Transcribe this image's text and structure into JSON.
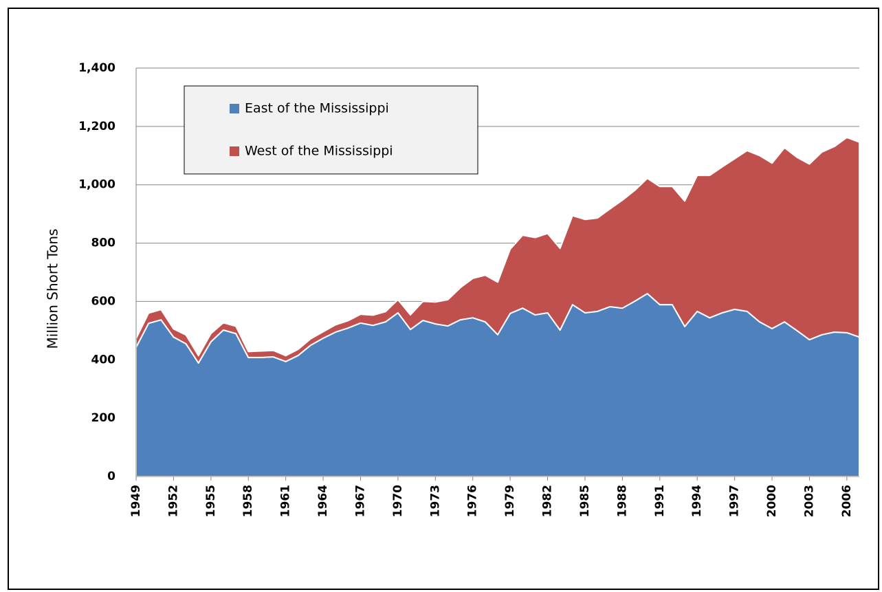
{
  "chart_data": {
    "type": "stacked-area",
    "y_label": "Million Short Tons",
    "x": [
      1949,
      1950,
      1951,
      1952,
      1953,
      1954,
      1955,
      1956,
      1957,
      1958,
      1959,
      1960,
      1961,
      1962,
      1963,
      1964,
      1965,
      1966,
      1967,
      1968,
      1969,
      1970,
      1971,
      1972,
      1973,
      1974,
      1975,
      1976,
      1977,
      1978,
      1979,
      1980,
      1981,
      1982,
      1983,
      1984,
      1985,
      1986,
      1987,
      1988,
      1989,
      1990,
      1991,
      1992,
      1993,
      1994,
      1995,
      1996,
      1997,
      1998,
      1999,
      2000,
      2001,
      2002,
      2003,
      2004,
      2005,
      2006,
      2007
    ],
    "xlim": [
      1949,
      2007
    ],
    "xticks": [
      1949,
      1952,
      1955,
      1958,
      1961,
      1964,
      1967,
      1970,
      1973,
      1976,
      1979,
      1982,
      1985,
      1988,
      1991,
      1994,
      1997,
      2000,
      2003,
      2006
    ],
    "ylim": [
      0,
      1400
    ],
    "yticks": [
      0,
      200,
      400,
      600,
      800,
      {
        "value": 1000,
        "label": "1,000"
      },
      {
        "value": 1200,
        "label": "1,200"
      },
      {
        "value": 1400,
        "label": "1,400"
      }
    ],
    "grid": true,
    "series": [
      {
        "name": "East of the Mississippi",
        "color": "#4f81bd",
        "values": [
          443,
          525,
          537,
          478,
          455,
          389,
          462,
          502,
          490,
          408,
          408,
          410,
          394,
          415,
          450,
          474,
          495,
          509,
          526,
          518,
          530,
          561,
          504,
          535,
          523,
          516,
          537,
          544,
          530,
          486,
          559,
          577,
          554,
          561,
          502,
          589,
          561,
          566,
          582,
          577,
          601,
          627,
          589,
          589,
          514,
          566,
          544,
          561,
          573,
          566,
          530,
          507,
          530,
          500,
          469,
          486,
          495,
          493,
          478
        ]
      },
      {
        "name": "West of the Mississippi",
        "color": "#c0504d",
        "values": [
          30,
          35,
          35,
          28,
          30,
          25,
          28,
          25,
          25,
          20,
          22,
          22,
          20,
          21,
          22,
          22,
          25,
          25,
          30,
          35,
          35,
          45,
          50,
          65,
          75,
          90,
          110,
          135,
          160,
          180,
          220,
          250,
          265,
          272,
          280,
          305,
          320,
          320,
          335,
          370,
          380,
          395,
          405,
          405,
          430,
          466,
          488,
          500,
          516,
          551,
          570,
          567,
          597,
          594,
          602,
          626,
          636,
          669,
          668
        ]
      }
    ]
  }
}
